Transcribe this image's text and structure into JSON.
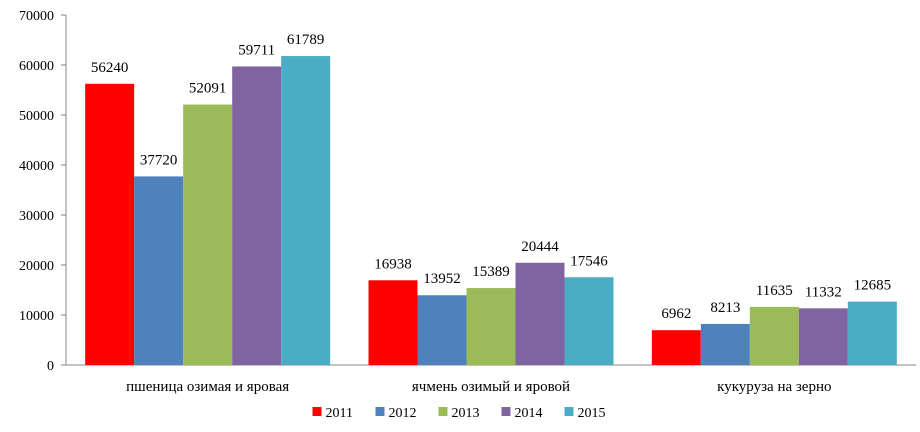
{
  "chart_data": {
    "type": "bar",
    "categories": [
      "пшеница озимая и яровая",
      "ячмень озимый и яровой",
      "кукуруза на зерно"
    ],
    "series": [
      {
        "name": "2011",
        "color": "#FF0000",
        "values": [
          56240,
          16938,
          6962
        ]
      },
      {
        "name": "2012",
        "color": "#4F81BD",
        "values": [
          37720,
          13952,
          8213
        ]
      },
      {
        "name": "2013",
        "color": "#9BBB59",
        "values": [
          52091,
          15389,
          11635
        ]
      },
      {
        "name": "2014",
        "color": "#8064A2",
        "values": [
          59711,
          20444,
          11332
        ]
      },
      {
        "name": "2015",
        "color": "#4BACC6",
        "values": [
          61789,
          17546,
          12685
        ]
      }
    ],
    "ylim": [
      0,
      70000
    ],
    "yticks": [
      "0",
      "10000",
      "20000",
      "30000",
      "40000",
      "50000",
      "60000",
      "70000"
    ],
    "grid": false,
    "legend_position": "bottom",
    "data_labels": true
  }
}
